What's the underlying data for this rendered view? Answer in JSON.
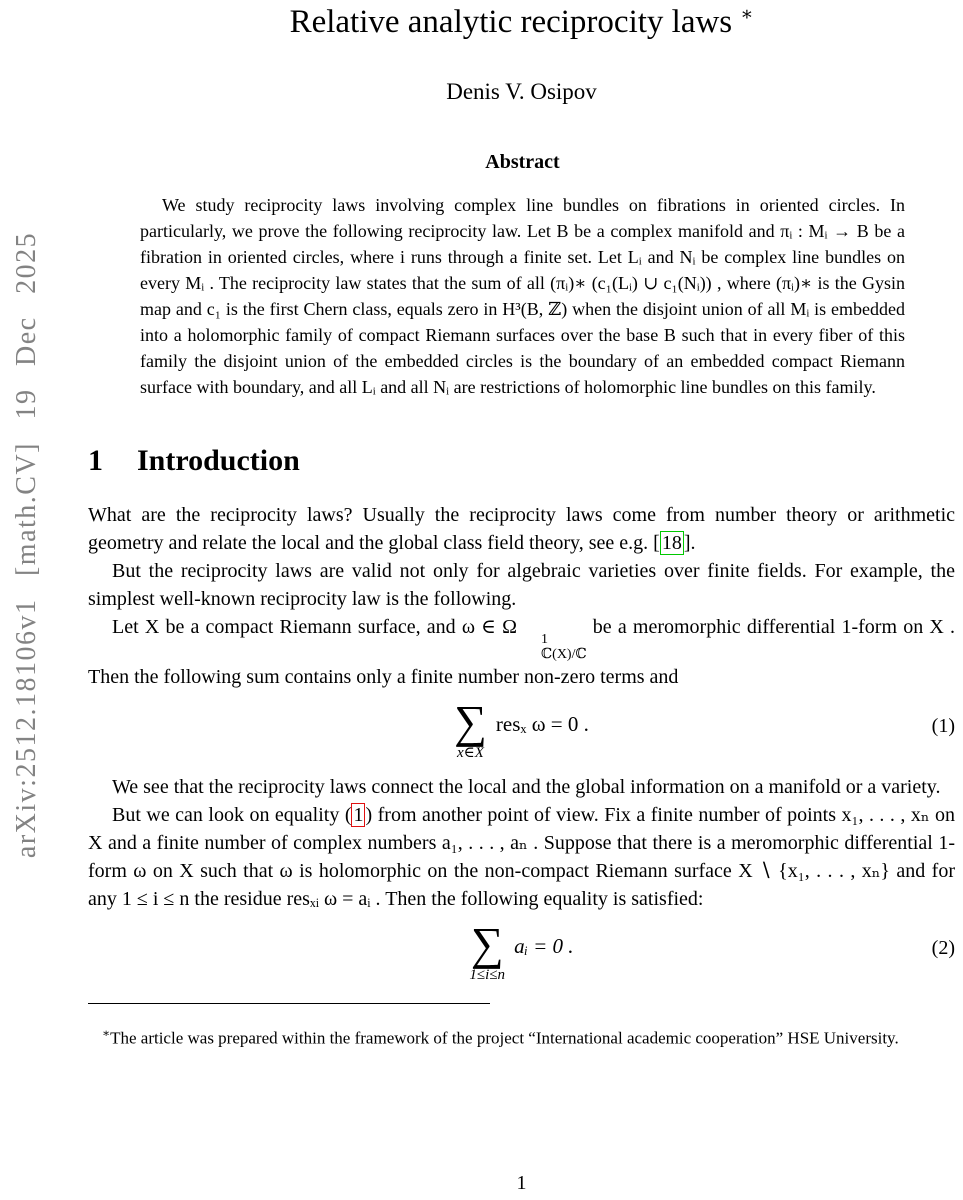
{
  "banner": {
    "text": "arXiv:2512.18106v1 [math.CV] 19 Dec 2025"
  },
  "header": {
    "title": "Relative analytic reciprocity laws",
    "title_mark": "∗",
    "author": "Denis V. Osipov"
  },
  "abstract": {
    "heading": "Abstract",
    "text": "We study reciprocity laws involving complex line bundles on fibrations in oriented circles. In particularly, we prove the following reciprocity law. Let B be a complex manifold and πᵢ : Mᵢ → B be a fibration in oriented circles, where i runs through a finite set. Let Lᵢ and Nᵢ be complex line bundles on every Mᵢ . The reciprocity law states that the sum of all (πᵢ)∗ (c₁(Lᵢ) ∪ c₁(Nᵢ)) , where (πᵢ)∗ is the Gysin map and c₁ is the first Chern class, equals zero in H³(B, ℤ) when the disjoint union of all Mᵢ is embedded into a holomorphic family of compact Riemann surfaces over the base B such that in every fiber of this family the disjoint union of the embedded circles is the boundary of an embedded compact Riemann surface with boundary, and all Lᵢ and all Nᵢ are restrictions of holomorphic line bundles on this family."
  },
  "section1": {
    "number": "1",
    "title": "Introduction"
  },
  "intro": {
    "p1_before": "What are the reciprocity laws? Usually the reciprocity laws come from number theory or arithmetic geometry and relate the local and the global class field theory, see e.g. [",
    "p1_cite": "18",
    "p1_after": "].",
    "p2": "But the reciprocity laws are valid not only for algebraic varieties over finite fields. For example, the simplest well-known reciprocity law is the following.",
    "p3_a": "Let X be a compact Riemann surface, and ω ∈ Ω",
    "p3_sup": "1",
    "p3_sub": "ℂ(X)/ℂ",
    "p3_b": " be a meromorphic differential 1-form on X . Then the following sum contains only a finite number non-zero terms and",
    "p4": "We see that the reciprocity laws connect the local and the global information on a manifold or a variety.",
    "p5_before": "But we can look on equality (",
    "p5_ref": "1",
    "p5_after": ") from another point of view. Fix a finite number of points x₁, . . . , xₙ on X and a finite number of complex numbers a₁, . . . , aₙ . Suppose that there is a meromorphic differential 1-form ω on X such that ω is holomorphic on the non-compact Riemann surface X ∖ {x₁, . . . , xₙ} and for any 1 ≤ i ≤ n the residue resₓᵢ ω = aᵢ . Then the following equality is satisfied:"
  },
  "equations": {
    "eq1": {
      "sigma": "∑",
      "limits": "x∈X",
      "body": "resₓ ω = 0 .",
      "number": "(1)"
    },
    "eq2": {
      "sigma": "∑",
      "limits": "1≤i≤n",
      "body": "aᵢ = 0 .",
      "number": "(2)"
    }
  },
  "footnote": {
    "marker": "∗",
    "text": "The article was prepared within the framework of the project “International academic cooperation” HSE University."
  },
  "page": {
    "number": "1"
  },
  "colors": {
    "citation_box_green": "#00c800",
    "equation_ref_box_red": "#e01010",
    "banner_gray": "#838383"
  }
}
